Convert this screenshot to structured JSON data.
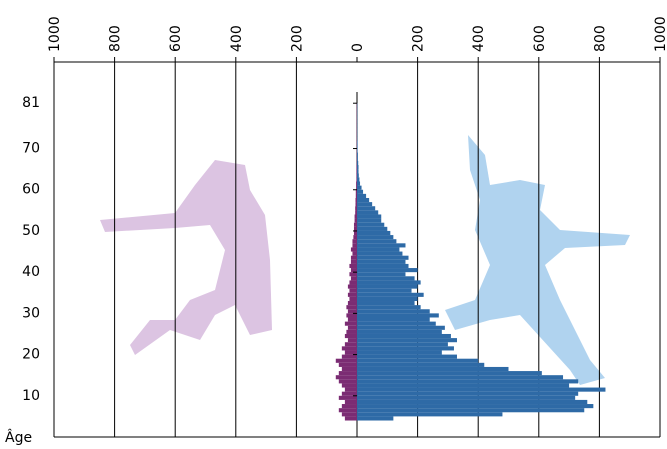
{
  "chart_data": {
    "type": "bar",
    "orientation": "horizontal",
    "y_label": "Âge",
    "y": [
      4,
      5,
      6,
      7,
      8,
      9,
      10,
      11,
      12,
      13,
      14,
      15,
      16,
      17,
      18,
      19,
      20,
      21,
      22,
      23,
      24,
      25,
      26,
      27,
      28,
      29,
      30,
      31,
      32,
      33,
      34,
      35,
      36,
      37,
      38,
      39,
      40,
      41,
      42,
      43,
      44,
      45,
      46,
      47,
      48,
      49,
      50,
      51,
      52,
      53,
      54,
      55,
      56,
      57,
      58,
      59,
      60,
      61,
      62,
      63,
      64,
      65,
      66,
      67,
      68,
      69,
      70,
      71,
      72,
      73,
      74,
      75,
      76,
      77,
      78,
      79,
      80
    ],
    "series": [
      {
        "color": "#7b2c73",
        "direction": "left",
        "values": [
          40,
          50,
          60,
          50,
          40,
          60,
          50,
          40,
          50,
          60,
          70,
          60,
          50,
          60,
          70,
          50,
          40,
          50,
          40,
          30,
          40,
          35,
          30,
          40,
          30,
          35,
          30,
          35,
          30,
          25,
          30,
          25,
          30,
          25,
          20,
          25,
          20,
          25,
          20,
          20,
          15,
          20,
          15,
          15,
          12,
          10,
          10,
          10,
          8,
          8,
          6,
          6,
          5,
          5,
          4,
          4,
          3,
          3,
          2,
          2,
          2,
          2,
          1,
          1,
          1,
          1,
          1,
          1,
          1,
          1,
          1,
          1,
          1,
          1,
          1,
          1,
          1
        ]
      },
      {
        "color": "#2e6aa6",
        "direction": "right",
        "values": [
          120,
          480,
          750,
          780,
          760,
          720,
          730,
          820,
          700,
          730,
          680,
          610,
          500,
          420,
          400,
          330,
          280,
          320,
          300,
          330,
          310,
          280,
          290,
          260,
          240,
          270,
          240,
          210,
          190,
          200,
          220,
          180,
          200,
          210,
          190,
          160,
          200,
          170,
          160,
          170,
          150,
          140,
          160,
          130,
          120,
          110,
          100,
          90,
          80,
          80,
          70,
          60,
          50,
          40,
          30,
          20,
          15,
          10,
          8,
          6,
          5,
          5,
          4,
          3,
          3,
          2,
          2,
          2,
          1,
          1,
          1,
          1,
          1,
          1,
          1,
          1,
          1
        ]
      }
    ],
    "xlim": [
      -1000,
      1000
    ],
    "xticks": [
      {
        "value": -1000,
        "label": "1000"
      },
      {
        "value": -800,
        "label": "800"
      },
      {
        "value": -600,
        "label": "600"
      },
      {
        "value": -400,
        "label": "400"
      },
      {
        "value": -200,
        "label": "200"
      },
      0,
      200,
      400,
      600,
      800,
      1000
    ],
    "ylim": [
      0,
      91
    ],
    "yticks": [
      10,
      20,
      30,
      40,
      50,
      60,
      70,
      81
    ],
    "grid": true
  }
}
